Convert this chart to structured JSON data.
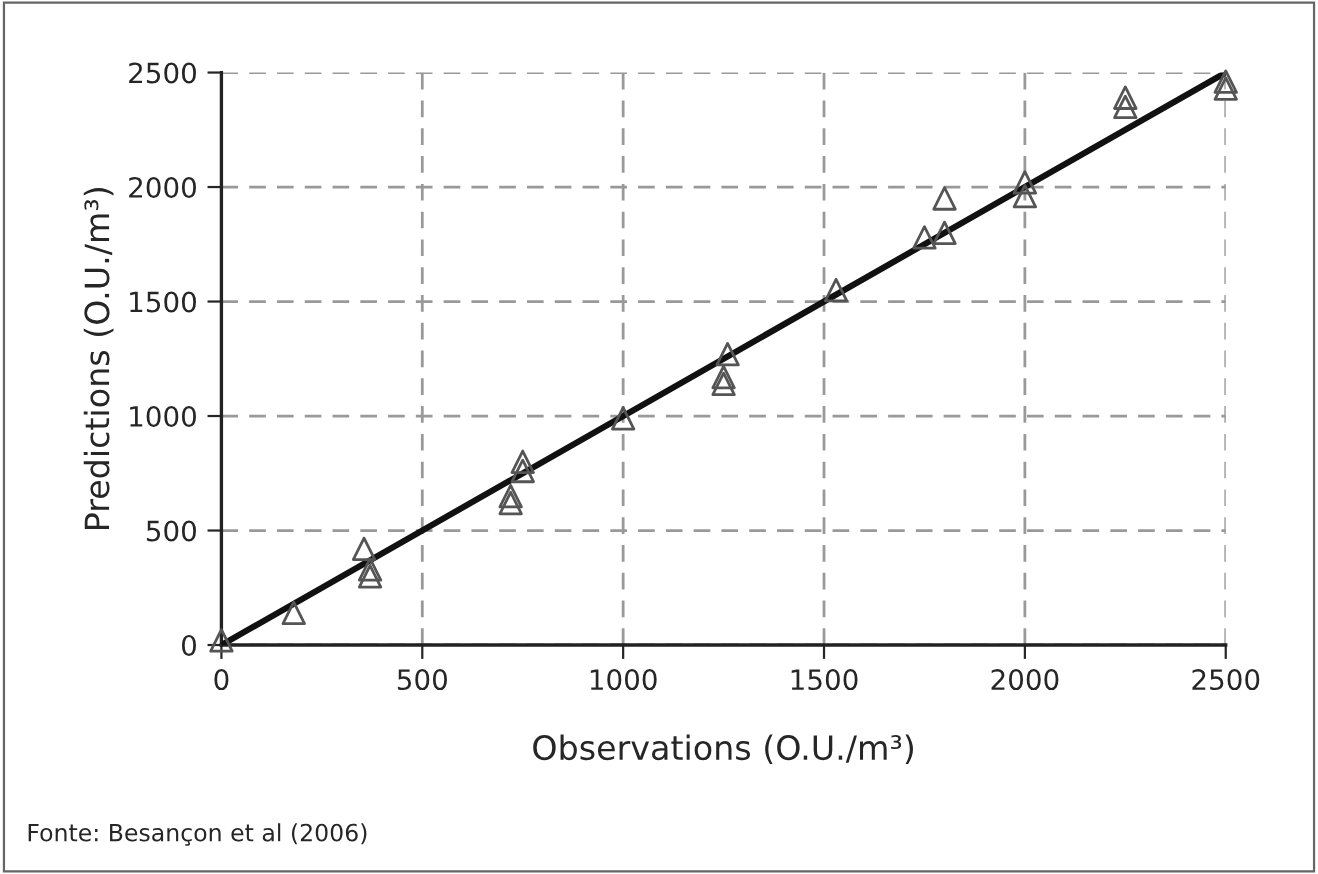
{
  "chart_data": {
    "type": "scatter",
    "xlabel": "Observations (O.U./m³)",
    "ylabel": "Predictions (O.U./m³)",
    "xlim": [
      0,
      2500
    ],
    "ylim": [
      0,
      2500
    ],
    "xticks": [
      0,
      500,
      1000,
      1500,
      2000,
      2500
    ],
    "yticks": [
      0,
      500,
      1000,
      1500,
      2000,
      2500
    ],
    "grid": true,
    "marker": "triangle",
    "series": [
      {
        "color": "#555555",
        "x": [
          0,
          180,
          355,
          370,
          370,
          720,
          720,
          750,
          750,
          1000,
          1260,
          1250,
          1250,
          1530,
          1750,
          1800,
          1800,
          2000,
          2000,
          2250,
          2250,
          2500,
          2500
        ],
        "values": [
          20,
          140,
          420,
          330,
          300,
          650,
          620,
          800,
          760,
          990,
          1270,
          1170,
          1140,
          1550,
          1780,
          1800,
          1950,
          2020,
          1960,
          2350,
          2390,
          2460,
          2430
        ]
      },
      {
        "type": "line",
        "color": "#111111",
        "x": [
          0,
          2500
        ],
        "values": [
          0,
          2500
        ],
        "marker": "none",
        "line_style": "solid"
      }
    ],
    "annotations": [
      "Fonte: Besançon et al (2006)"
    ]
  }
}
